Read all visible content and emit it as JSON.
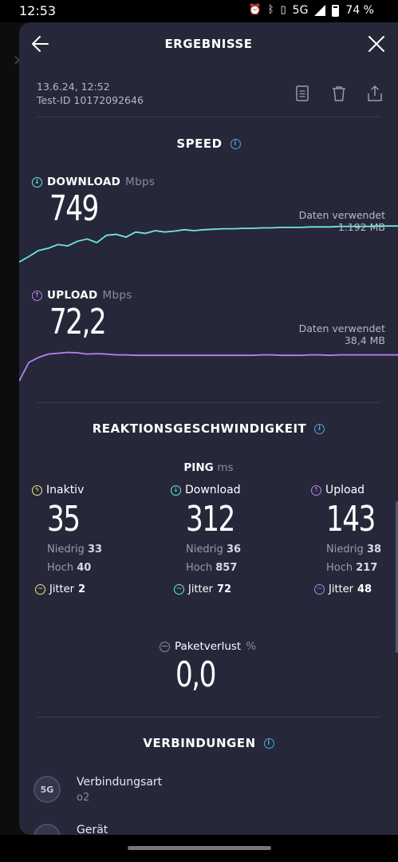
{
  "status_bar": {
    "time": "12:53",
    "network": "5G",
    "battery": "74 %",
    "icons": [
      "alarm-icon",
      "bluetooth-icon",
      "vibrate-icon",
      "signal-icon",
      "battery-icon"
    ]
  },
  "header": {
    "title": "ERGEBNISSE",
    "back_icon": "arrow-left-icon",
    "close_icon": "close-icon"
  },
  "result_meta": {
    "date": "13.6.24, 12:52",
    "test_id": "Test-ID 10172092646",
    "actions": [
      "document-icon",
      "trash-icon",
      "share-icon"
    ]
  },
  "speed": {
    "title": "SPEED",
    "download": {
      "label": "DOWNLOAD",
      "unit": "Mbps",
      "value": "749",
      "data_used_label": "Daten verwendet",
      "data_used_value": "1.192 MB",
      "color": "#6ee7de",
      "series": [
        0.2,
        0.32,
        0.45,
        0.5,
        0.58,
        0.55,
        0.65,
        0.7,
        0.62,
        0.78,
        0.8,
        0.74,
        0.85,
        0.82,
        0.88,
        0.85,
        0.87,
        0.9,
        0.88,
        0.9,
        0.91,
        0.92,
        0.92,
        0.93,
        0.93,
        0.94,
        0.94,
        0.95,
        0.95,
        0.95,
        0.96,
        0.96,
        0.96,
        0.97,
        0.97,
        0.97,
        0.97,
        0.98,
        0.98,
        0.98
      ]
    },
    "upload": {
      "label": "UPLOAD",
      "unit": "Mbps",
      "value": "72,2",
      "data_used_label": "Daten verwendet",
      "data_used_value": "38,4 MB",
      "color": "#b584f4",
      "series": [
        0.05,
        0.5,
        0.62,
        0.7,
        0.72,
        0.74,
        0.73,
        0.7,
        0.71,
        0.7,
        0.68,
        0.68,
        0.67,
        0.67,
        0.67,
        0.67,
        0.67,
        0.67,
        0.67,
        0.67,
        0.67,
        0.67,
        0.67,
        0.67,
        0.67,
        0.68,
        0.68,
        0.67,
        0.67,
        0.67,
        0.68,
        0.68,
        0.67,
        0.68,
        0.68,
        0.68,
        0.68,
        0.68,
        0.68,
        0.68
      ]
    }
  },
  "latency": {
    "title": "REAKTIONSGESCHWINDIGKEIT",
    "ping_label": "PING",
    "ping_unit": "ms",
    "columns": [
      {
        "name": "Inaktiv",
        "value": "35",
        "low_label": "Niedrig",
        "low": "33",
        "high_label": "Hoch",
        "high": "40",
        "jitter_label": "Jitter",
        "jitter": "2",
        "color": "#f1e58a"
      },
      {
        "name": "Download",
        "value": "312",
        "low_label": "Niedrig",
        "low": "36",
        "high_label": "Hoch",
        "high": "857",
        "jitter_label": "Jitter",
        "jitter": "72",
        "color": "#6ee7de"
      },
      {
        "name": "Upload",
        "value": "143",
        "low_label": "Niedrig",
        "low": "38",
        "high_label": "Hoch",
        "high": "217",
        "jitter_label": "Jitter",
        "jitter": "48",
        "color": "#b584f4"
      }
    ],
    "packet_loss_label": "Paketverlust",
    "packet_loss_unit": "%",
    "packet_loss_value": "0,0"
  },
  "connections": {
    "title": "VERBINDUNGEN",
    "items": [
      {
        "badge": "5G",
        "title": "Verbindungsart",
        "subtitle": "o2"
      },
      {
        "badge": "",
        "title": "Gerät",
        "subtitle": ""
      }
    ]
  }
}
